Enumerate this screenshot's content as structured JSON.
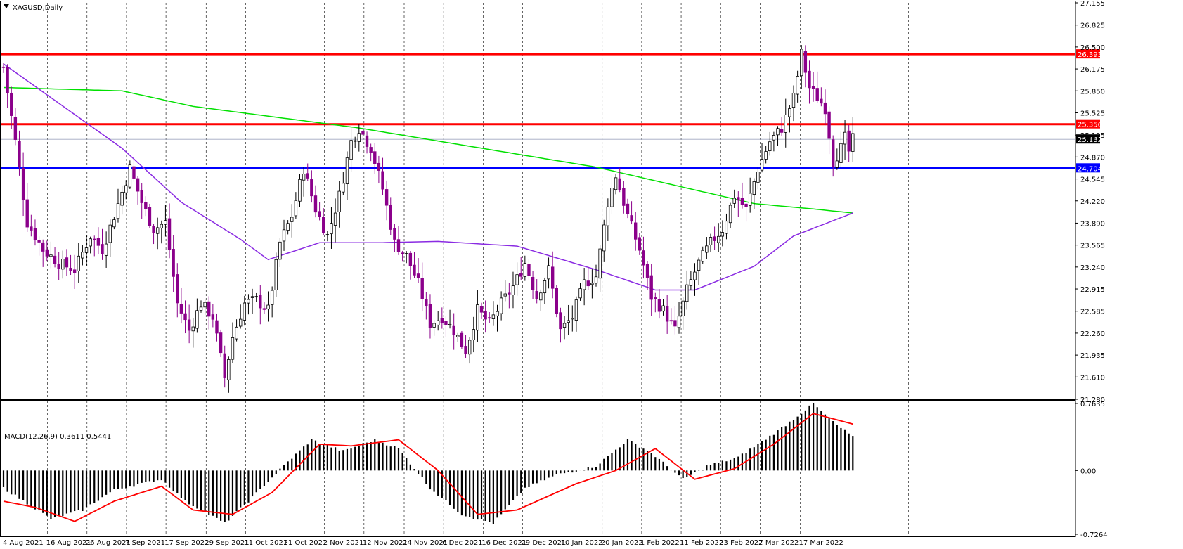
{
  "chart_data": {
    "type": "candlestick",
    "symbol_label": "XAGUSD,Daily",
    "indicator_label": "MACD(12,26,9) 0.3611 0.5441",
    "price_axis": {
      "range": [
        21.28,
        27.155
      ],
      "ticks": [
        "27.155",
        "26.825",
        "26.500",
        "26.175",
        "25.850",
        "25.525",
        "25.195",
        "24.870",
        "24.545",
        "24.220",
        "23.890",
        "23.565",
        "23.240",
        "22.915",
        "22.585",
        "22.260",
        "21.935",
        "21.610",
        "21.280"
      ]
    },
    "macd_axis": {
      "range": [
        -0.7264,
        0.7635
      ],
      "ticks": [
        "0.7635",
        "0.00",
        "-0.7264"
      ]
    },
    "date_labels": [
      "4 Aug 2021",
      "16 Aug 2021",
      "26 Aug 2021",
      "7 Sep 2021",
      "17 Sep 2021",
      "29 Sep 2021",
      "11 Oct 2021",
      "21 Oct 2021",
      "2 Nov 2021",
      "12 Nov 2021",
      "24 Nov 2021",
      "6 Dec 2021",
      "16 Dec 2021",
      "29 Dec 2021",
      "10 Jan 2022",
      "20 Jan 2022",
      "1 Feb 2022",
      "11 Feb 2022",
      "23 Feb 2022",
      "7 Mar 2022",
      "17 Mar 2022"
    ],
    "levels": [
      {
        "name": "resistance-high",
        "value": 26.393,
        "label": "26.393",
        "color": "#ff0000"
      },
      {
        "name": "resistance",
        "value": 25.356,
        "label": "25.356",
        "color": "#ff0000"
      },
      {
        "name": "support",
        "value": 24.704,
        "label": "24.704",
        "color": "#0000ff"
      }
    ],
    "current_price": {
      "value": 25.132,
      "label": "25.132"
    },
    "colors": {
      "bear": "#8b008b",
      "bull": "#ffffff",
      "wick_bull": "#000000",
      "ma_slow": "#00e000",
      "ma_fast": "#8a2be2",
      "signal": "#ff0000",
      "hist": "#000000"
    },
    "anchors": [
      [
        0,
        26.2
      ],
      [
        3,
        25.1
      ],
      [
        6,
        23.9
      ],
      [
        10,
        23.5
      ],
      [
        14,
        23.3
      ],
      [
        18,
        23.2
      ],
      [
        22,
        23.7
      ],
      [
        25,
        23.5
      ],
      [
        28,
        24.0
      ],
      [
        32,
        24.7
      ],
      [
        35,
        24.2
      ],
      [
        38,
        23.8
      ],
      [
        41,
        23.9
      ],
      [
        44,
        22.7
      ],
      [
        47,
        22.3
      ],
      [
        50,
        22.7
      ],
      [
        53,
        22.5
      ],
      [
        56,
        21.6
      ],
      [
        58,
        22.2
      ],
      [
        61,
        22.7
      ],
      [
        64,
        22.75
      ],
      [
        67,
        22.6
      ],
      [
        70,
        23.6
      ],
      [
        73,
        24.0
      ],
      [
        76,
        24.7
      ],
      [
        79,
        24.1
      ],
      [
        82,
        23.7
      ],
      [
        85,
        24.3
      ],
      [
        88,
        25.1
      ],
      [
        90,
        25.3
      ],
      [
        93,
        25.0
      ],
      [
        96,
        24.4
      ],
      [
        99,
        23.6
      ],
      [
        102,
        23.4
      ],
      [
        105,
        23.0
      ],
      [
        108,
        22.4
      ],
      [
        111,
        22.5
      ],
      [
        114,
        22.3
      ],
      [
        117,
        22.0
      ],
      [
        120,
        22.6
      ],
      [
        123,
        22.4
      ],
      [
        126,
        22.7
      ],
      [
        129,
        22.95
      ],
      [
        132,
        23.3
      ],
      [
        135,
        22.8
      ],
      [
        138,
        23.2
      ],
      [
        141,
        22.3
      ],
      [
        144,
        22.5
      ],
      [
        147,
        23.0
      ],
      [
        150,
        23.1
      ],
      [
        153,
        24.2
      ],
      [
        155,
        24.6
      ],
      [
        158,
        24.0
      ],
      [
        161,
        23.5
      ],
      [
        164,
        22.8
      ],
      [
        167,
        22.6
      ],
      [
        170,
        22.3
      ],
      [
        173,
        22.9
      ],
      [
        176,
        23.3
      ],
      [
        179,
        23.6
      ],
      [
        182,
        23.8
      ],
      [
        185,
        24.3
      ],
      [
        188,
        24.1
      ],
      [
        191,
        24.7
      ],
      [
        194,
        25.1
      ],
      [
        197,
        25.3
      ],
      [
        200,
        25.75
      ],
      [
        202,
        26.4
      ],
      [
        204,
        25.9
      ],
      [
        206,
        25.75
      ],
      [
        208,
        25.6
      ],
      [
        210,
        24.8
      ],
      [
        212,
        25.0
      ],
      [
        213,
        25.15
      ],
      [
        214,
        24.95
      ],
      [
        215,
        25.13
      ]
    ],
    "ma_slow_anchors": [
      [
        0,
        25.9
      ],
      [
        30,
        25.85
      ],
      [
        48,
        25.62
      ],
      [
        90,
        25.3
      ],
      [
        150,
        24.72
      ],
      [
        170,
        24.45
      ],
      [
        190,
        24.18
      ],
      [
        205,
        24.1
      ],
      [
        215,
        24.04
      ]
    ],
    "ma_fast_anchors": [
      [
        0,
        26.25
      ],
      [
        18,
        25.5
      ],
      [
        30,
        25.0
      ],
      [
        45,
        24.2
      ],
      [
        60,
        23.65
      ],
      [
        67,
        23.35
      ],
      [
        80,
        23.6
      ],
      [
        95,
        23.6
      ],
      [
        110,
        23.62
      ],
      [
        130,
        23.55
      ],
      [
        150,
        23.2
      ],
      [
        165,
        22.9
      ],
      [
        175,
        22.9
      ],
      [
        190,
        23.25
      ],
      [
        200,
        23.7
      ],
      [
        215,
        24.04
      ]
    ],
    "macd_hist_anchors": [
      [
        0,
        -0.2
      ],
      [
        12,
        -0.55
      ],
      [
        20,
        -0.45
      ],
      [
        28,
        -0.22
      ],
      [
        40,
        -0.1
      ],
      [
        46,
        -0.35
      ],
      [
        56,
        -0.6
      ],
      [
        62,
        -0.35
      ],
      [
        72,
        0.1
      ],
      [
        78,
        0.35
      ],
      [
        86,
        0.22
      ],
      [
        94,
        0.35
      ],
      [
        100,
        0.25
      ],
      [
        108,
        -0.2
      ],
      [
        116,
        -0.5
      ],
      [
        124,
        -0.6
      ],
      [
        132,
        -0.2
      ],
      [
        140,
        -0.05
      ],
      [
        150,
        0.05
      ],
      [
        158,
        0.35
      ],
      [
        164,
        0.2
      ],
      [
        172,
        -0.1
      ],
      [
        178,
        0.05
      ],
      [
        186,
        0.15
      ],
      [
        196,
        0.45
      ],
      [
        205,
        0.76
      ],
      [
        210,
        0.55
      ],
      [
        215,
        0.38
      ]
    ],
    "macd_signal_anchors": [
      [
        0,
        -0.35
      ],
      [
        8,
        -0.42
      ],
      [
        18,
        -0.58
      ],
      [
        28,
        -0.35
      ],
      [
        40,
        -0.18
      ],
      [
        48,
        -0.45
      ],
      [
        58,
        -0.5
      ],
      [
        68,
        -0.25
      ],
      [
        80,
        0.3
      ],
      [
        88,
        0.28
      ],
      [
        100,
        0.35
      ],
      [
        110,
        0.0
      ],
      [
        120,
        -0.5
      ],
      [
        130,
        -0.45
      ],
      [
        145,
        -0.15
      ],
      [
        155,
        0.0
      ],
      [
        165,
        0.25
      ],
      [
        175,
        -0.1
      ],
      [
        185,
        0.02
      ],
      [
        195,
        0.3
      ],
      [
        205,
        0.65
      ],
      [
        215,
        0.53
      ]
    ]
  }
}
